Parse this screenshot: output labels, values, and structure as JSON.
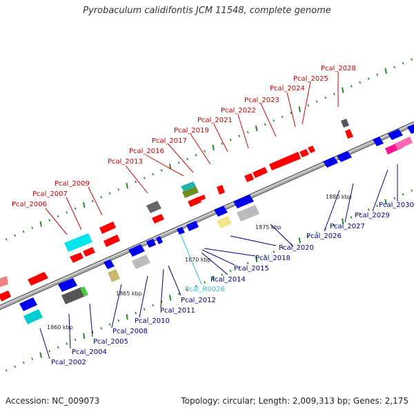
{
  "title": "Pyrobaculum calidifontis JCM 11548, complete genome",
  "footer": {
    "accession": "Accession: NC_009073",
    "summary": "Topology: circular; Length: 2,009,313 bp; Genes: 2,175"
  },
  "colors": {
    "top_label": "#cc0000",
    "bottom_label": "#000080",
    "rna_label": "#33bbdd",
    "backbone": "#8a8a8a",
    "tick": "#228822"
  },
  "scale_labels": [
    "1860 kbp",
    "1865 kbp",
    "1870 kbp",
    "1875 kbp",
    "1880 kbp"
  ],
  "top_labels": [
    "Pcal_2006",
    "Pcal_2007",
    "Pcal_2009",
    "Pcal_2013",
    "Pcal_2016",
    "Pcal_2017",
    "Pcal_2019",
    "Pcal_2021",
    "Pcal_2022",
    "Pcal_2023",
    "Pcal_2024",
    "Pcal_2025",
    "Pcal_2028"
  ],
  "bottom_labels": [
    "Pcal_2002",
    "Pcal_2004",
    "Pcal_2005",
    "Pcal_2008",
    "Pcal_2010",
    "Pcal_2011",
    "Pcal_2012",
    "Pcal_R0026",
    "Pcal_2014",
    "Pcal_2015",
    "Pcal_2018",
    "Pcal_2020",
    "Pcal_2026",
    "Pcal_2027",
    "Pcal_2029",
    "Pcal_2030"
  ]
}
